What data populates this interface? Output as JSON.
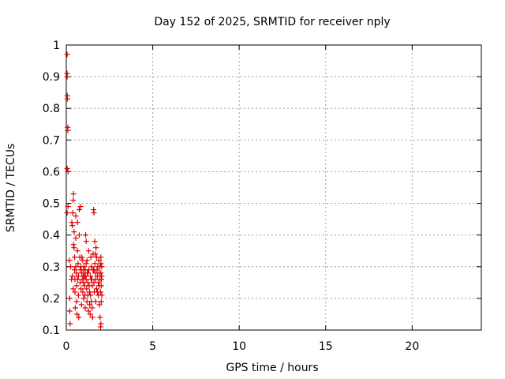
{
  "chart_data": {
    "type": "scatter",
    "title": "Day 152 of 2025, SRMTID for receiver nply",
    "xlabel": "GPS time / hours",
    "ylabel": "SRMTID / TECUs",
    "xlim": [
      0,
      24
    ],
    "ylim": [
      0.1,
      1.0
    ],
    "xticks": [
      0,
      5,
      10,
      15,
      20
    ],
    "xtick_labels": [
      "0",
      "5",
      "10",
      "15",
      "20"
    ],
    "yticks": [
      0.1,
      0.2,
      0.3,
      0.4,
      0.5,
      0.6,
      0.7,
      0.8,
      0.9,
      1.0
    ],
    "ytick_labels": [
      "0.1",
      "0.2",
      "0.3",
      "0.4",
      "0.5",
      "0.6",
      "0.7",
      "0.8",
      "0.9",
      "1"
    ],
    "grid": true,
    "marker": "+",
    "color": "#e00000",
    "series": [
      {
        "name": "SRMTID",
        "points": [
          [
            0.05,
            0.97
          ],
          [
            0.05,
            0.91
          ],
          [
            0.05,
            0.9
          ],
          [
            0.06,
            0.84
          ],
          [
            0.07,
            0.83
          ],
          [
            0.08,
            0.74
          ],
          [
            0.09,
            0.73
          ],
          [
            0.05,
            0.61
          ],
          [
            0.1,
            0.6
          ],
          [
            0.05,
            0.47
          ],
          [
            0.1,
            0.49
          ],
          [
            0.18,
            0.32
          ],
          [
            0.2,
            0.2
          ],
          [
            0.22,
            0.12
          ],
          [
            0.2,
            0.16
          ],
          [
            0.25,
            0.3
          ],
          [
            0.3,
            0.26
          ],
          [
            0.32,
            0.44
          ],
          [
            0.35,
            0.43
          ],
          [
            0.38,
            0.47
          ],
          [
            0.4,
            0.51
          ],
          [
            0.42,
            0.53
          ],
          [
            0.45,
            0.41
          ],
          [
            0.45,
            0.36
          ],
          [
            0.48,
            0.33
          ],
          [
            0.5,
            0.26
          ],
          [
            0.5,
            0.22
          ],
          [
            0.52,
            0.17
          ],
          [
            0.55,
            0.46
          ],
          [
            0.55,
            0.39
          ],
          [
            0.58,
            0.28
          ],
          [
            0.6,
            0.24
          ],
          [
            0.6,
            0.19
          ],
          [
            0.62,
            0.15
          ],
          [
            0.65,
            0.44
          ],
          [
            0.65,
            0.35
          ],
          [
            0.68,
            0.31
          ],
          [
            0.7,
            0.27
          ],
          [
            0.7,
            0.21
          ],
          [
            0.72,
            0.14
          ],
          [
            0.75,
            0.48
          ],
          [
            0.75,
            0.4
          ],
          [
            0.78,
            0.33
          ],
          [
            0.8,
            0.29
          ],
          [
            0.8,
            0.25
          ],
          [
            0.82,
            0.49
          ],
          [
            0.85,
            0.3
          ],
          [
            0.85,
            0.23
          ],
          [
            0.88,
            0.18
          ],
          [
            0.9,
            0.28
          ],
          [
            0.92,
            0.26
          ],
          [
            0.95,
            0.32
          ],
          [
            0.95,
            0.22
          ],
          [
            0.98,
            0.27
          ],
          [
            1.0,
            0.25
          ],
          [
            1.0,
            0.2
          ],
          [
            1.02,
            0.3
          ],
          [
            1.05,
            0.27
          ],
          [
            1.05,
            0.24
          ],
          [
            1.08,
            0.21
          ],
          [
            1.1,
            0.29
          ],
          [
            1.1,
            0.17
          ],
          [
            1.12,
            0.4
          ],
          [
            1.15,
            0.38
          ],
          [
            1.15,
            0.26
          ],
          [
            1.18,
            0.23
          ],
          [
            1.2,
            0.19
          ],
          [
            1.2,
            0.32
          ],
          [
            1.22,
            0.28
          ],
          [
            1.25,
            0.25
          ],
          [
            1.25,
            0.21
          ],
          [
            1.28,
            0.16
          ],
          [
            1.3,
            0.35
          ],
          [
            1.3,
            0.29
          ],
          [
            1.32,
            0.24
          ],
          [
            1.35,
            0.22
          ],
          [
            1.35,
            0.18
          ],
          [
            1.38,
            0.15
          ],
          [
            1.4,
            0.27
          ],
          [
            1.4,
            0.21
          ],
          [
            1.42,
            0.33
          ],
          [
            1.45,
            0.3
          ],
          [
            1.45,
            0.19
          ],
          [
            1.48,
            0.26
          ],
          [
            1.5,
            0.24
          ],
          [
            1.5,
            0.17
          ],
          [
            1.52,
            0.14
          ],
          [
            1.55,
            0.34
          ],
          [
            1.55,
            0.29
          ],
          [
            1.58,
            0.48
          ],
          [
            1.6,
            0.47
          ],
          [
            1.6,
            0.25
          ],
          [
            1.62,
            0.22
          ],
          [
            1.65,
            0.38
          ],
          [
            1.65,
            0.31
          ],
          [
            1.68,
            0.28
          ],
          [
            1.7,
            0.26
          ],
          [
            1.7,
            0.19
          ],
          [
            1.72,
            0.36
          ],
          [
            1.75,
            0.33
          ],
          [
            1.75,
            0.23
          ],
          [
            1.78,
            0.29
          ],
          [
            1.8,
            0.27
          ],
          [
            1.82,
            0.3
          ],
          [
            1.85,
            0.25
          ],
          [
            1.85,
            0.21
          ],
          [
            1.88,
            0.32
          ],
          [
            1.9,
            0.28
          ],
          [
            1.9,
            0.24
          ],
          [
            1.92,
            0.18
          ],
          [
            1.95,
            0.3
          ],
          [
            1.95,
            0.26
          ],
          [
            1.98,
            0.22
          ],
          [
            2.0,
            0.33
          ],
          [
            2.0,
            0.31
          ],
          [
            2.0,
            0.28
          ],
          [
            2.02,
            0.24
          ],
          [
            2.02,
            0.19
          ],
          [
            2.05,
            0.3
          ],
          [
            2.05,
            0.27
          ],
          [
            2.05,
            0.21
          ],
          [
            2.0,
            0.12
          ],
          [
            1.98,
            0.11
          ],
          [
            1.95,
            0.14
          ],
          [
            2.03,
            0.26
          ],
          [
            0.35,
            0.27
          ],
          [
            0.4,
            0.23
          ],
          [
            0.55,
            0.3
          ],
          [
            0.65,
            0.26
          ],
          [
            0.9,
            0.33
          ],
          [
            1.0,
            0.29
          ],
          [
            1.1,
            0.27
          ],
          [
            1.15,
            0.31
          ],
          [
            1.25,
            0.28
          ],
          [
            1.45,
            0.26
          ],
          [
            1.6,
            0.29
          ],
          [
            1.68,
            0.34
          ],
          [
            1.8,
            0.22
          ],
          [
            0.42,
            0.37
          ],
          [
            0.48,
            0.29
          ]
        ]
      }
    ]
  }
}
